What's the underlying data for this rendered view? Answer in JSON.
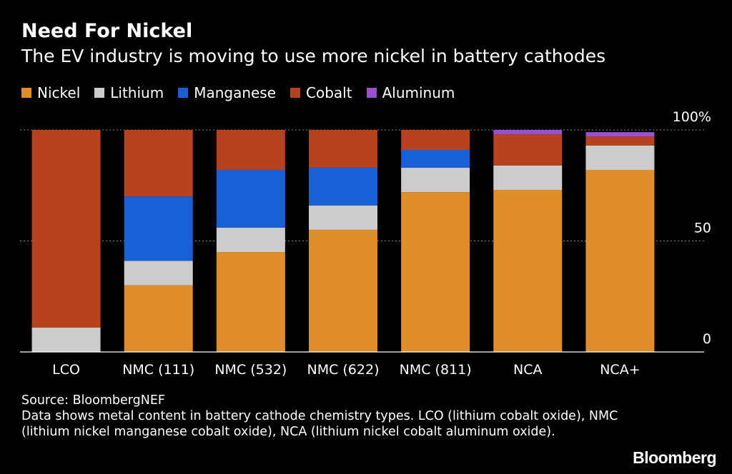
{
  "header": {
    "title": "Need For Nickel",
    "subtitle": "The EV industry is moving to use more nickel in battery cathodes"
  },
  "chart_data": {
    "type": "bar",
    "stacked": true,
    "categories": [
      "LCO",
      "NMC (111)",
      "NMC (532)",
      "NMC (622)",
      "NMC (811)",
      "NCA",
      "NCA+"
    ],
    "series": [
      {
        "name": "Nickel",
        "color": "#e08d2b",
        "values": [
          0,
          30,
          45,
          55,
          72,
          73,
          82
        ]
      },
      {
        "name": "Lithium",
        "color": "#cccccc",
        "values": [
          11,
          11,
          11,
          11,
          11,
          11,
          11
        ]
      },
      {
        "name": "Manganese",
        "color": "#1760d6",
        "values": [
          0,
          29,
          26,
          17,
          8,
          0,
          0
        ]
      },
      {
        "name": "Cobalt",
        "color": "#b8411f",
        "values": [
          89,
          30,
          18,
          17,
          9,
          14,
          4
        ]
      },
      {
        "name": "Aluminum",
        "color": "#9b4fd1",
        "values": [
          0,
          0,
          0,
          0,
          0,
          2,
          2
        ]
      }
    ],
    "yticks": [
      {
        "value": 0,
        "label": "0"
      },
      {
        "value": 50,
        "label": "50"
      },
      {
        "value": 100,
        "label": "100%"
      }
    ],
    "ylim": [
      0,
      100
    ],
    "grid": true,
    "legend_position": "top-left"
  },
  "footer": {
    "source": "Source: BloombergNEF",
    "note": "Data shows metal content in battery cathode chemistry types. LCO (lithium cobalt oxide), NMC (lithium nickel manganese cobalt oxide), NCA (lithium nickel cobalt aluminum oxide).",
    "brand": "Bloomberg"
  }
}
